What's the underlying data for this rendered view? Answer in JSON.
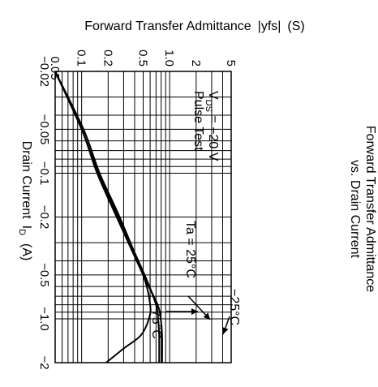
{
  "chart_data": {
    "type": "line",
    "title": "Forward Transfer Admittance vs. Drain Current",
    "title_lines": [
      "Forward Transfer Admittance",
      "vs. Drain Current"
    ],
    "xlabel": "Drain Current",
    "xlabel_symbol": "I",
    "xlabel_subscript": "D",
    "xlabel_unit": "(A)",
    "ylabel": "Forward Transfer Admittance",
    "ylabel_symbol": "|yfs|",
    "ylabel_unit": "(S)",
    "x_scale": "log",
    "y_scale": "log",
    "xlim": [
      -0.02,
      -2
    ],
    "ylim": [
      0.05,
      5
    ],
    "x_ticks": [
      "−0.02",
      "−0.05",
      "−0.1",
      "−0.2",
      "−0.5",
      "−1.0",
      "−2"
    ],
    "y_ticks": [
      "0.05",
      "0.1",
      "0.2",
      "0.5",
      "1.0",
      "2",
      "5"
    ],
    "grid": true,
    "conditions": [
      "V_DS = −20 V",
      "Pulse Test"
    ],
    "conditions_text": {
      "vds_symbol": "V",
      "vds_subscript": "DS",
      "vds_value": " = −20 V",
      "pulse": "Pulse Test"
    },
    "series": [
      {
        "name": "Ta = 25°C",
        "x": [
          -0.02,
          -0.05,
          -0.1,
          -0.2,
          -0.5,
          -0.8,
          -1.0,
          -1.3,
          -2
        ],
        "y": [
          0.05,
          0.1,
          0.155,
          0.26,
          0.52,
          0.7,
          0.74,
          0.76,
          0.76
        ]
      },
      {
        "name": "−25°C",
        "x": [
          -0.02,
          -0.05,
          -0.1,
          -0.2,
          -0.5,
          -0.8,
          -1.0,
          -1.3,
          -2
        ],
        "y": [
          0.05,
          0.1,
          0.15,
          0.25,
          0.5,
          0.73,
          0.79,
          0.82,
          0.82
        ]
      },
      {
        "name": "75°C",
        "x": [
          -0.02,
          -0.05,
          -0.1,
          -0.2,
          -0.5,
          -0.8,
          -1.0,
          -1.3,
          -1.6,
          -2
        ],
        "y": [
          0.05,
          0.105,
          0.16,
          0.27,
          0.5,
          0.6,
          0.58,
          0.47,
          0.3,
          0.19
        ]
      }
    ],
    "annotations": [
      "Ta = 25°C",
      "−25°C",
      "75°C"
    ]
  }
}
